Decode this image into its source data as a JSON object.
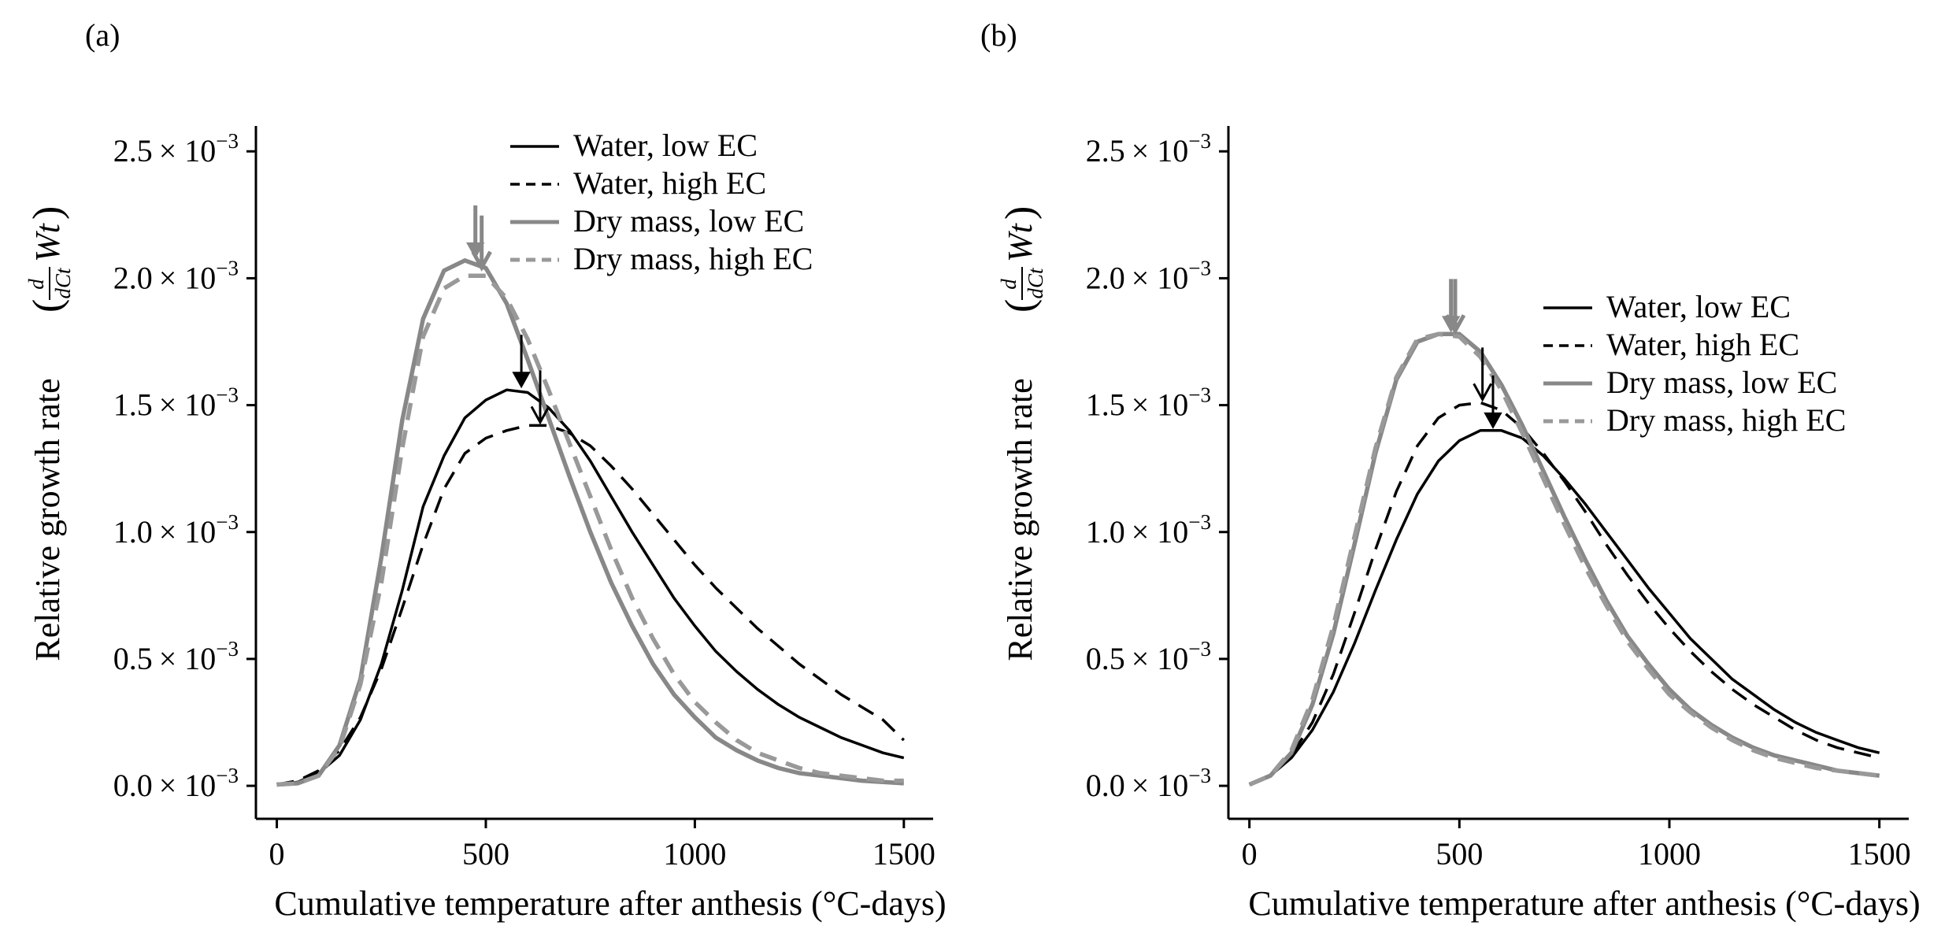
{
  "chart_data": [
    {
      "type": "line",
      "panel_label": "(a)",
      "xlabel": "Cumulative temperature after anthesis (°C-days)",
      "ylabel": "Relative growth rate",
      "ylabel_math": {
        "num": "d",
        "den": "dCt",
        "var": "Wt"
      },
      "xlim": [
        -50,
        1570
      ],
      "ylim": [
        -0.00013,
        0.0026
      ],
      "xticks": [
        0,
        500,
        1000,
        1500
      ],
      "xtick_labels": [
        "0",
        "500",
        "1000",
        "1500"
      ],
      "yticks": [
        0.0,
        0.0005,
        0.001,
        0.0015,
        0.002,
        0.0025
      ],
      "ytick_mantissas": [
        "0.0",
        "0.5",
        "1.0",
        "1.5",
        "2.0",
        "2.5"
      ],
      "ytick_base": "× 10",
      "ytick_exp": "−3",
      "grid": false,
      "legend_position": "top-right",
      "x": [
        0,
        50,
        100,
        150,
        200,
        250,
        300,
        350,
        400,
        450,
        500,
        550,
        600,
        650,
        700,
        750,
        800,
        850,
        900,
        950,
        1000,
        1050,
        1100,
        1150,
        1200,
        1250,
        1300,
        1350,
        1400,
        1450,
        1500
      ],
      "series": [
        {
          "name": "Water, low EC",
          "color": "#000000",
          "dash": "solid",
          "values": [
            5e-06,
            1.5e-05,
            5e-05,
            0.00012,
            0.00026,
            0.00048,
            0.00077,
            0.0011,
            0.0013,
            0.00145,
            0.00152,
            0.00156,
            0.00155,
            0.00149,
            0.0014,
            0.00128,
            0.00114,
            0.001,
            0.00087,
            0.00074,
            0.00063,
            0.00053,
            0.00045,
            0.00038,
            0.00032,
            0.00027,
            0.00023,
            0.00019,
            0.00016,
            0.00013,
            0.00011
          ]
        },
        {
          "name": "Water, high EC",
          "color": "#000000",
          "dash": "dashed",
          "values": [
            5e-06,
            2e-05,
            6e-05,
            0.00014,
            0.00027,
            0.00046,
            0.0007,
            0.00095,
            0.00117,
            0.00131,
            0.00137,
            0.0014,
            0.00142,
            0.00142,
            0.00139,
            0.00134,
            0.00126,
            0.00117,
            0.00107,
            0.00097,
            0.00087,
            0.00078,
            0.0007,
            0.00062,
            0.00055,
            0.00048,
            0.00042,
            0.00036,
            0.00031,
            0.00026,
            0.00018
          ]
        },
        {
          "name": "Dry mass, low EC",
          "color": "#888888",
          "dash": "solid",
          "values": [
            5e-06,
            1e-05,
            4e-05,
            0.00016,
            0.00042,
            0.0009,
            0.00144,
            0.00184,
            0.00203,
            0.00207,
            0.00204,
            0.0019,
            0.00168,
            0.00145,
            0.00122,
            0.001,
            0.0008,
            0.00063,
            0.00048,
            0.00036,
            0.00027,
            0.00019,
            0.00014,
            0.0001,
            7e-05,
            5e-05,
            4e-05,
            3e-05,
            2e-05,
            1.5e-05,
            1e-05
          ]
        },
        {
          "name": "Dry mass, high EC",
          "color": "#999999",
          "dash": "dashed",
          "values": [
            5e-06,
            1e-05,
            4e-05,
            0.00015,
            0.0004,
            0.0008,
            0.00133,
            0.00177,
            0.00196,
            0.00201,
            0.00201,
            0.00192,
            0.00176,
            0.00156,
            0.00135,
            0.00114,
            0.00093,
            0.00074,
            0.00058,
            0.00044,
            0.00033,
            0.00025,
            0.00018,
            0.00013,
            0.0001,
            7e-05,
            5e-05,
            4e-05,
            3e-05,
            2e-05,
            2e-05
          ]
        }
      ],
      "peak_arrows": [
        {
          "x": 475,
          "y": 0.00207,
          "color": "#888888",
          "style": "filled"
        },
        {
          "x": 490,
          "y": 0.00203,
          "color": "#888888",
          "style": "open"
        },
        {
          "x": 585,
          "y": 0.00156,
          "color": "#000000",
          "style": "filled"
        },
        {
          "x": 630,
          "y": 0.00142,
          "color": "#000000",
          "style": "open"
        }
      ]
    },
    {
      "type": "line",
      "panel_label": "(b)",
      "xlabel": "Cumulative temperature after anthesis (°C-days)",
      "ylabel": "Relative growth rate",
      "ylabel_math": {
        "num": "d",
        "den": "dCt",
        "var": "Wt"
      },
      "xlim": [
        -50,
        1570
      ],
      "ylim": [
        -0.00013,
        0.0026
      ],
      "xticks": [
        0,
        500,
        1000,
        1500
      ],
      "xtick_labels": [
        "0",
        "500",
        "1000",
        "1500"
      ],
      "yticks": [
        0.0,
        0.0005,
        0.001,
        0.0015,
        0.002,
        0.0025
      ],
      "ytick_mantissas": [
        "0.0",
        "0.5",
        "1.0",
        "1.5",
        "2.0",
        "2.5"
      ],
      "ytick_base": "× 10",
      "ytick_exp": "−3",
      "grid": false,
      "legend_position": "center-right",
      "x": [
        0,
        50,
        100,
        150,
        200,
        250,
        300,
        350,
        400,
        450,
        500,
        550,
        600,
        650,
        700,
        750,
        800,
        850,
        900,
        950,
        1000,
        1050,
        1100,
        1150,
        1200,
        1250,
        1300,
        1350,
        1400,
        1450,
        1500
      ],
      "series": [
        {
          "name": "Water, low EC",
          "color": "#000000",
          "dash": "solid",
          "values": [
            5e-06,
            4e-05,
            0.00011,
            0.00022,
            0.00037,
            0.00056,
            0.00077,
            0.00097,
            0.00115,
            0.00128,
            0.00136,
            0.0014,
            0.0014,
            0.00137,
            0.0013,
            0.00121,
            0.00111,
            0.001,
            0.00089,
            0.00078,
            0.00068,
            0.00058,
            0.0005,
            0.00042,
            0.00036,
            0.0003,
            0.00025,
            0.00021,
            0.00018,
            0.00015,
            0.00013
          ]
        },
        {
          "name": "Water, high EC",
          "color": "#000000",
          "dash": "dashed",
          "values": [
            5e-06,
            4e-05,
            0.00012,
            0.00025,
            0.00044,
            0.00068,
            0.00093,
            0.00116,
            0.00134,
            0.00145,
            0.0015,
            0.00151,
            0.00148,
            0.00141,
            0.00131,
            0.0012,
            0.00108,
            0.00095,
            0.00083,
            0.00072,
            0.00062,
            0.00053,
            0.00045,
            0.00038,
            0.00032,
            0.00027,
            0.00022,
            0.00018,
            0.00015,
            0.00013,
            0.00011
          ]
        },
        {
          "name": "Dry mass, low EC",
          "color": "#888888",
          "dash": "solid",
          "values": [
            5e-06,
            4e-05,
            0.00013,
            0.00032,
            0.0006,
            0.00095,
            0.00131,
            0.0016,
            0.00175,
            0.00178,
            0.00178,
            0.00171,
            0.00158,
            0.00142,
            0.00124,
            0.00106,
            0.00089,
            0.00073,
            0.00059,
            0.00048,
            0.00038,
            0.0003,
            0.00024,
            0.00019,
            0.00015,
            0.00012,
            0.0001,
            8e-05,
            6e-05,
            5e-05,
            4e-05
          ]
        },
        {
          "name": "Dry mass, high EC",
          "color": "#999999",
          "dash": "dashed",
          "values": [
            5e-06,
            4e-05,
            0.00014,
            0.00034,
            0.00063,
            0.00098,
            0.00133,
            0.00161,
            0.00176,
            0.00178,
            0.00177,
            0.00169,
            0.00156,
            0.00139,
            0.00121,
            0.00103,
            0.00086,
            0.00071,
            0.00057,
            0.00046,
            0.00036,
            0.00029,
            0.00023,
            0.00018,
            0.00014,
            0.00011,
            9e-05,
            7e-05,
            6e-05,
            5e-05,
            4e-05
          ]
        }
      ],
      "peak_arrows": [
        {
          "x": 480,
          "y": 0.00178,
          "color": "#888888",
          "style": "filled"
        },
        {
          "x": 490,
          "y": 0.00178,
          "color": "#888888",
          "style": "open"
        },
        {
          "x": 555,
          "y": 0.00151,
          "color": "#000000",
          "style": "open"
        },
        {
          "x": 580,
          "y": 0.0014,
          "color": "#000000",
          "style": "filled"
        }
      ]
    }
  ]
}
